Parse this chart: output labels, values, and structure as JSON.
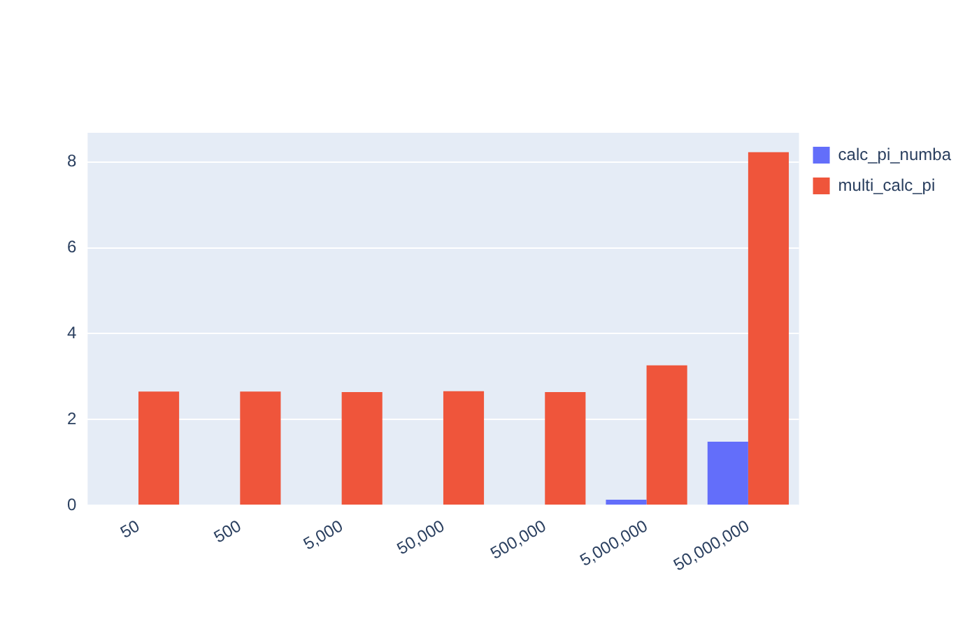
{
  "chart_data": {
    "type": "bar",
    "categories": [
      "50",
      "500",
      "5,000",
      "50,000",
      "500,000",
      "5,000,000",
      "50,000,000"
    ],
    "series": [
      {
        "name": "calc_pi_numba",
        "color": "#636efa",
        "values": [
          0,
          0,
          0,
          0,
          null,
          0.13,
          1.48
        ]
      },
      {
        "name": "multi_calc_pi",
        "color": "#ef553b",
        "values": [
          2.65,
          2.65,
          2.64,
          2.66,
          2.64,
          3.26,
          8.23
        ]
      }
    ],
    "ylim": [
      0,
      8.68
    ],
    "yticks": [
      0,
      2,
      4,
      6,
      8
    ],
    "grid": "y",
    "legend": "top right"
  }
}
